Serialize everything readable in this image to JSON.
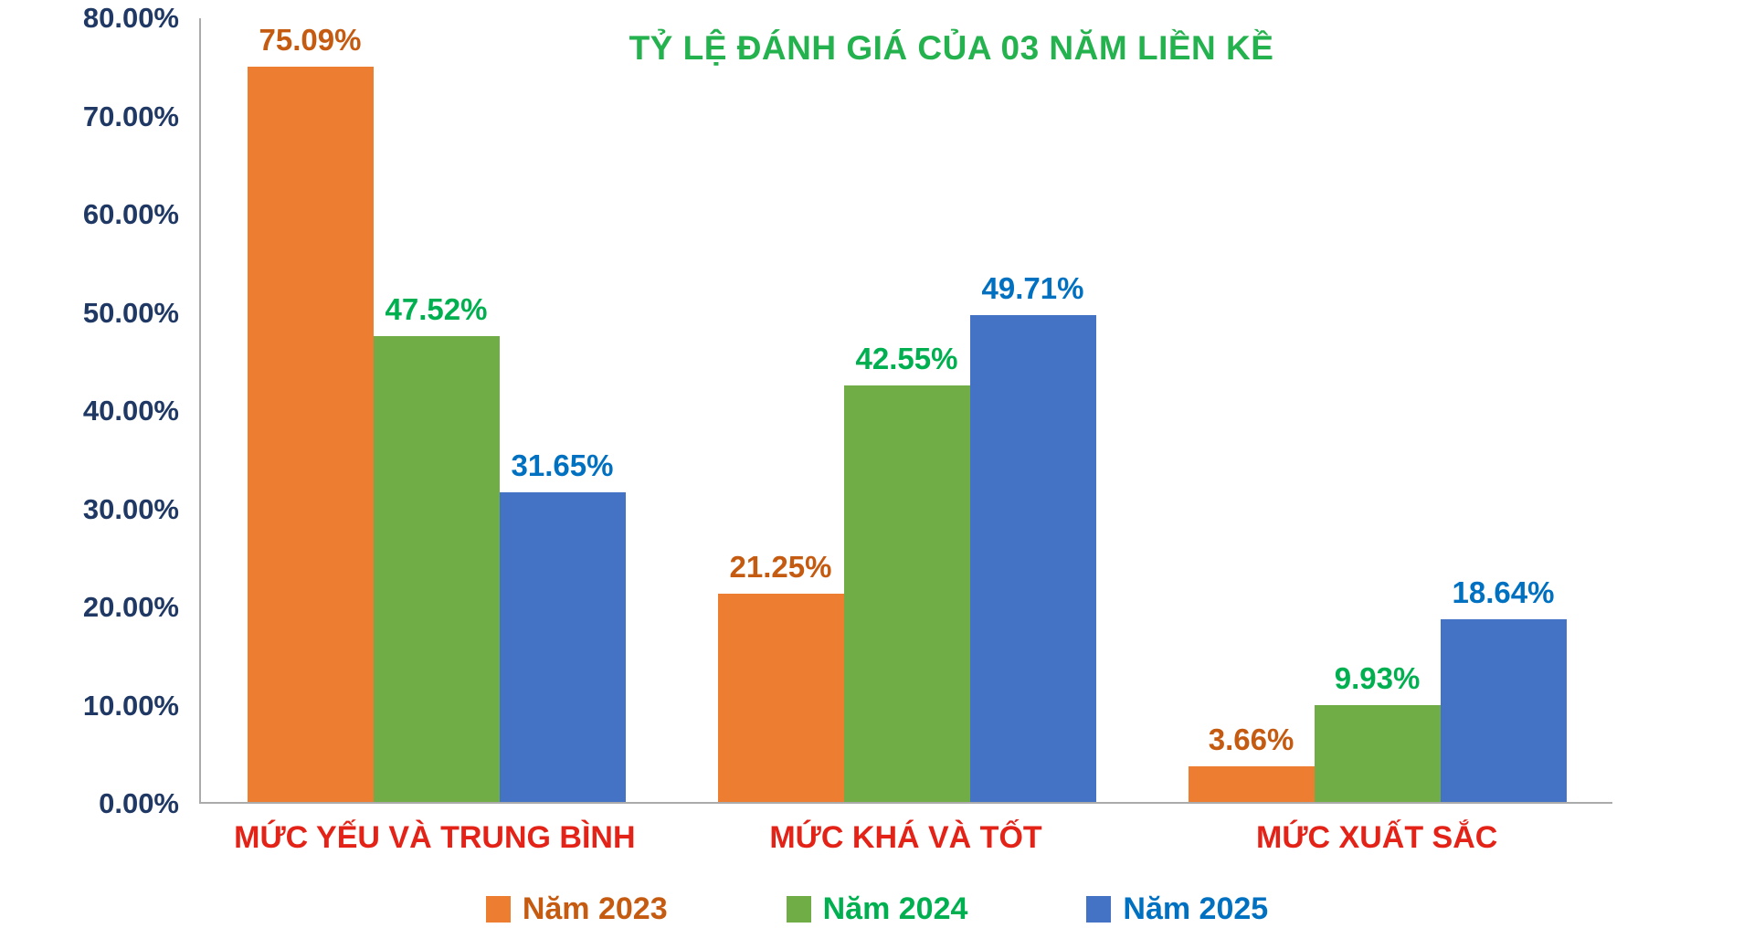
{
  "chart_data": {
    "type": "bar",
    "title": "TỶ LỆ ĐÁNH GIÁ CỦA 03 NĂM LIỀN KỀ",
    "categories": [
      "MỨC YẾU VÀ TRUNG BÌNH",
      "MỨC KHÁ VÀ TỐT",
      "MỨC XUẤT SẮC"
    ],
    "series": [
      {
        "name": "Năm 2023",
        "values": [
          75.09,
          21.25,
          3.66
        ],
        "labels": [
          "75.09%",
          "21.25%",
          "3.66%"
        ],
        "bar_color": "#ED7D31",
        "label_color": "#C55A11"
      },
      {
        "name": "Năm 2024",
        "values": [
          47.52,
          42.55,
          9.93
        ],
        "labels": [
          "47.52%",
          "42.55%",
          "9.93%"
        ],
        "bar_color": "#70AD47",
        "label_color": "#00B050"
      },
      {
        "name": "Năm 2025",
        "values": [
          31.65,
          49.71,
          18.64
        ],
        "labels": [
          "31.65%",
          "49.71%",
          "18.64%"
        ],
        "bar_color": "#4472C4",
        "label_color": "#0070C0"
      }
    ],
    "xlabel": "",
    "ylabel": "",
    "ylim": [
      0,
      80
    ],
    "ytick_step": 10,
    "yticks": [
      "0.00%",
      "10.00%",
      "20.00%",
      "30.00%",
      "40.00%",
      "50.00%",
      "60.00%",
      "70.00%",
      "80.00%"
    ],
    "grid": false,
    "legend_position": "bottom"
  },
  "colors": {
    "title": "#24B24E",
    "category_label": "#E42318",
    "ytick_label": "#1F3864",
    "axis_line": "#ABABAB",
    "background": "#FFFFFF"
  }
}
